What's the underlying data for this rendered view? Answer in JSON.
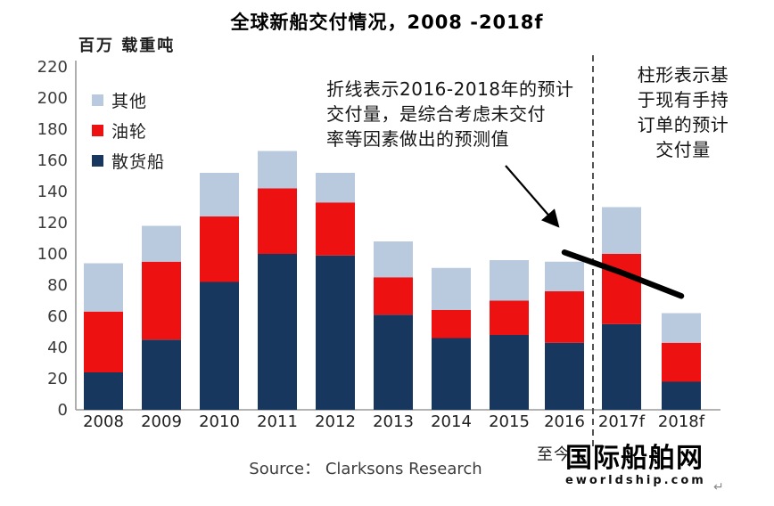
{
  "title": "全球新船交付情况，2008 -2018f",
  "y_axis_unit": "百万 载重吨",
  "legend": [
    {
      "label": "其他",
      "color": "#b9c9de"
    },
    {
      "label": "油轮",
      "color": "#ee1111"
    },
    {
      "label": "散货船",
      "color": "#17375e"
    }
  ],
  "annotations": {
    "line_note": "折线表示2016-2018年的预计\n交付量，是综合考虑未交付\n率等因素做出的预测值",
    "bar_note": "柱形表示基\n于现有手持\n订单的预计\n交付量",
    "now_label": "至今"
  },
  "source": "Source： Clarksons Research",
  "watermark": {
    "cn": "国际船舶网",
    "en": "eworldship.com",
    "return_mark": "↵"
  },
  "colors": {
    "bulk_carrier": "#17375e",
    "tanker": "#ee1111",
    "other": "#b9c9de",
    "axis": "#9a9a9a",
    "tick_text": "#3b3b3b",
    "divider": "#3f3f3f",
    "forecast_line": "#000000"
  },
  "chart_data": {
    "type": "bar",
    "stacked": true,
    "title": "全球新船交付情况，2008 -2018f",
    "xlabel": "",
    "ylabel": "百万 载重吨",
    "ylim": [
      0,
      220
    ],
    "ytick_step": 20,
    "grid": false,
    "legend_position": "upper-left",
    "categories": [
      "2008",
      "2009",
      "2010",
      "2011",
      "2012",
      "2013",
      "2014",
      "2015",
      "2016",
      "2017f",
      "2018f"
    ],
    "series": [
      {
        "name": "散货船",
        "color": "#17375e",
        "values": [
          24,
          45,
          82,
          100,
          99,
          61,
          46,
          48,
          43,
          55,
          18
        ]
      },
      {
        "name": "油轮",
        "color": "#ee1111",
        "values": [
          39,
          50,
          42,
          42,
          34,
          24,
          18,
          22,
          33,
          45,
          25
        ]
      },
      {
        "name": "其他",
        "color": "#b9c9de",
        "values": [
          31,
          23,
          28,
          24,
          19,
          23,
          27,
          26,
          19,
          30,
          19
        ]
      }
    ],
    "totals": [
      94,
      118,
      152,
      166,
      152,
      108,
      91,
      96,
      95,
      130,
      62
    ],
    "forecast_line": {
      "name": "2016-2018预计交付量",
      "color": "#000000",
      "points": [
        {
          "category": "2016",
          "value": 101
        },
        {
          "category": "2017f",
          "value": 88
        },
        {
          "category": "2018f",
          "value": 73
        }
      ]
    },
    "divider_after_category": "2016"
  }
}
